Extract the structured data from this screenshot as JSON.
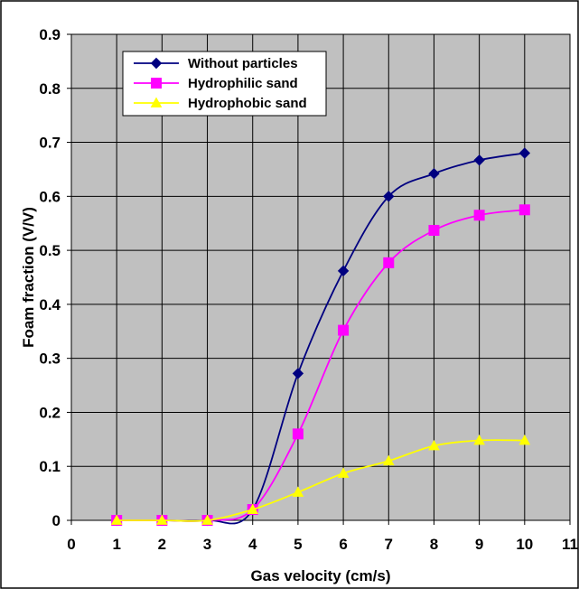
{
  "chart_data": {
    "type": "line",
    "title": "",
    "xlabel": "Gas velocity (cm/s)",
    "ylabel": "Foam fraction (V/V)",
    "xlim": [
      0,
      11
    ],
    "ylim": [
      0,
      0.9
    ],
    "x_ticks": [
      0,
      1,
      2,
      3,
      4,
      5,
      6,
      7,
      8,
      9,
      10,
      11
    ],
    "y_ticks": [
      0,
      0.1,
      0.2,
      0.3,
      0.4,
      0.5,
      0.6,
      0.7,
      0.8,
      0.9
    ],
    "x_tick_labels": [
      "0",
      "1",
      "2",
      "3",
      "4",
      "5",
      "6",
      "7",
      "8",
      "9",
      "10",
      "11"
    ],
    "y_tick_labels": [
      "0",
      "0.1",
      "0.2",
      "0.3",
      "0.4",
      "0.5",
      "0.6",
      "0.7",
      "0.8",
      "0.9"
    ],
    "grid": true,
    "plot_background": "#c0c0c0",
    "legend_position": "top-left",
    "series": [
      {
        "name": "Without particles",
        "color": "#000080",
        "marker": "diamond",
        "x": [
          1,
          2,
          3,
          4,
          5,
          6,
          7,
          8,
          9,
          10
        ],
        "y": [
          0,
          0,
          0,
          0.02,
          0.272,
          0.462,
          0.6,
          0.642,
          0.667,
          0.68
        ]
      },
      {
        "name": "Hydrophilic sand",
        "color": "#ff00ff",
        "marker": "square",
        "x": [
          1,
          2,
          3,
          4,
          5,
          6,
          7,
          8,
          9,
          10
        ],
        "y": [
          0,
          0,
          0,
          0.02,
          0.16,
          0.352,
          0.477,
          0.537,
          0.565,
          0.575
        ]
      },
      {
        "name": "Hydrophobic sand",
        "color": "#ffff00",
        "marker": "triangle",
        "x": [
          1,
          2,
          3,
          4,
          5,
          6,
          7,
          8,
          9,
          10
        ],
        "y": [
          0,
          0,
          0,
          0.02,
          0.052,
          0.087,
          0.11,
          0.138,
          0.148,
          0.148
        ]
      }
    ]
  }
}
